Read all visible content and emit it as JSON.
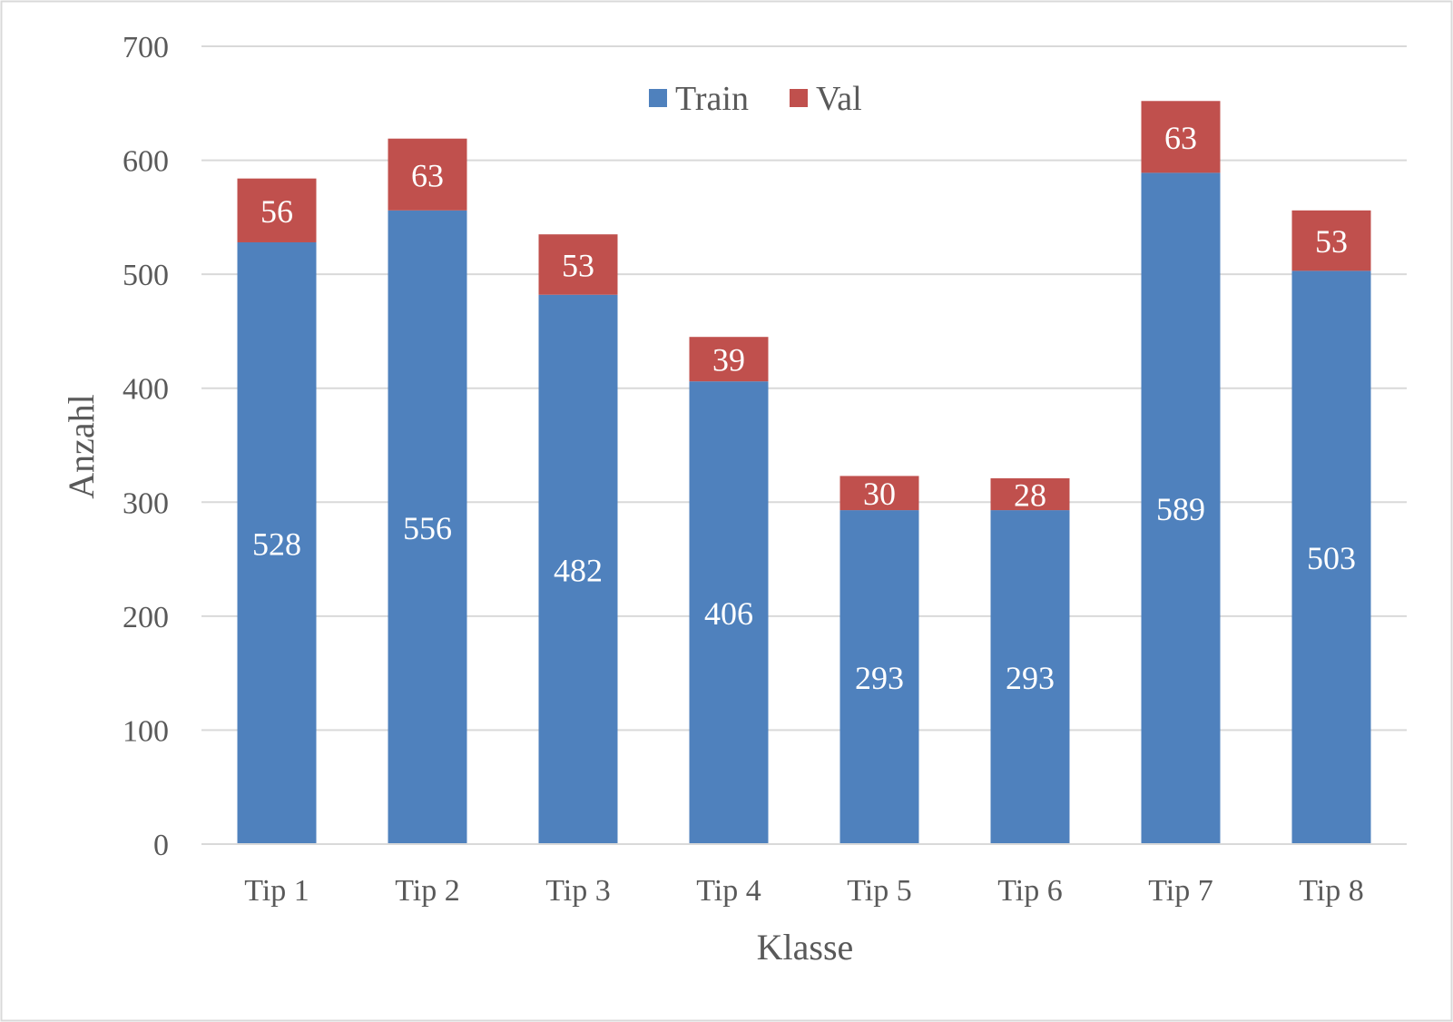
{
  "chart_data": {
    "type": "bar",
    "stacked": true,
    "categories": [
      "Tip 1",
      "Tip 2",
      "Tip 3",
      "Tip 4",
      "Tip 5",
      "Tip 6",
      "Tip 7",
      "Tip 8"
    ],
    "series": [
      {
        "name": "Train",
        "color": "#4f81bd",
        "values": [
          528,
          556,
          482,
          406,
          293,
          293,
          589,
          503
        ]
      },
      {
        "name": "Val",
        "color": "#c0504d",
        "values": [
          56,
          63,
          53,
          39,
          30,
          28,
          63,
          53
        ]
      }
    ],
    "xlabel": "Klasse",
    "ylabel": "Anzahl",
    "ylim": [
      0,
      700
    ],
    "yticks": [
      0,
      100,
      200,
      300,
      400,
      500,
      600,
      700
    ],
    "grid": true,
    "legend": "top-center",
    "data_labels": true
  }
}
